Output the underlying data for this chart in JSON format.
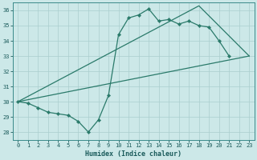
{
  "xlabel": "Humidex (Indice chaleur)",
  "xlim": [
    -0.5,
    23.5
  ],
  "ylim": [
    27.5,
    36.5
  ],
  "yticks": [
    28,
    29,
    30,
    31,
    32,
    33,
    34,
    35,
    36
  ],
  "xticks": [
    0,
    1,
    2,
    3,
    4,
    5,
    6,
    7,
    8,
    9,
    10,
    11,
    12,
    13,
    14,
    15,
    16,
    17,
    18,
    19,
    20,
    21,
    22,
    23
  ],
  "bg_color": "#cce8e8",
  "line_color": "#2a7a6a",
  "grid_color": "#aacece",
  "line1_x": [
    0,
    1,
    2,
    3,
    4,
    5,
    6,
    7,
    8,
    9,
    10,
    11,
    12,
    13,
    14,
    15,
    16,
    17,
    18,
    19,
    20,
    21
  ],
  "line1_y": [
    30.0,
    29.9,
    29.6,
    29.3,
    29.2,
    29.1,
    28.7,
    28.0,
    28.8,
    30.4,
    34.4,
    35.5,
    35.7,
    36.1,
    35.3,
    35.4,
    35.1,
    35.3,
    35.0,
    34.9,
    34.0,
    33.0
  ],
  "line2_x": [
    0,
    23
  ],
  "line2_y": [
    30.0,
    33.0
  ],
  "line3_x": [
    0,
    18,
    23
  ],
  "line3_y": [
    30.0,
    36.3,
    33.0
  ]
}
